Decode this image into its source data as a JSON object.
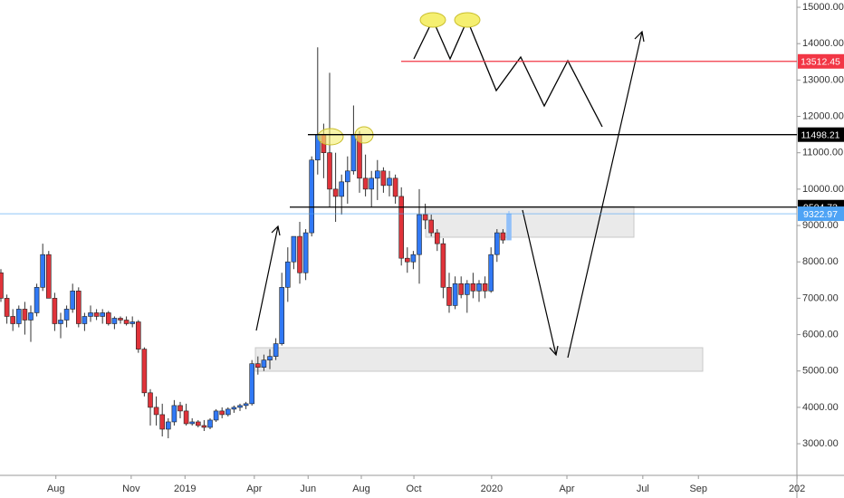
{
  "chart_data": {
    "type": "candlestick",
    "x": [
      0,
      1,
      2,
      3,
      4,
      5,
      6,
      7,
      8,
      9,
      10,
      11,
      12,
      13,
      14,
      15,
      16,
      17,
      18,
      19,
      20,
      21,
      22,
      23,
      24,
      25,
      26,
      27,
      28,
      29,
      30,
      31,
      32,
      33,
      34,
      35,
      36,
      37,
      38,
      39,
      40,
      41,
      42,
      43,
      44,
      45,
      46,
      47,
      48,
      49,
      50,
      51,
      52,
      53,
      54,
      55,
      56,
      57,
      58,
      59,
      60,
      61,
      62,
      63,
      64,
      65,
      66,
      67,
      68,
      69,
      70,
      71,
      72,
      73,
      74,
      75,
      76,
      77,
      78,
      79,
      80,
      81,
      82,
      83,
      84,
      85
    ],
    "open": [
      7700,
      7000,
      6500,
      6300,
      6700,
      6400,
      6600,
      7300,
      8200,
      7000,
      6300,
      6400,
      6700,
      7200,
      6300,
      6500,
      6600,
      6500,
      6600,
      6300,
      6450,
      6400,
      6300,
      6350,
      5600,
      4400,
      4000,
      3800,
      3400,
      3600,
      4050,
      3900,
      3550,
      3600,
      3500,
      3450,
      3650,
      3900,
      3800,
      3950,
      4000,
      4050,
      4100,
      5200,
      5100,
      5300,
      5400,
      5750,
      7300,
      8000,
      8700,
      7700,
      8800,
      10800,
      11500,
      11000,
      10000,
      9800,
      10200,
      10500,
      11500,
      10300,
      10000,
      10300,
      10500,
      10100,
      10300,
      9800,
      8100,
      8000,
      8200,
      9300,
      9150,
      8800,
      8500,
      7300,
      6800,
      7400,
      7100,
      7400,
      7200,
      7400,
      7200,
      8200,
      8800,
      8600
    ],
    "high": [
      7800,
      7100,
      6700,
      6800,
      6900,
      6800,
      7400,
      8500,
      8300,
      7150,
      6600,
      6800,
      7400,
      7300,
      6600,
      6800,
      6700,
      6700,
      6650,
      6500,
      6500,
      6500,
      6500,
      6400,
      5650,
      4500,
      4300,
      4100,
      3700,
      4200,
      4150,
      4100,
      3700,
      3650,
      3650,
      3700,
      3950,
      4000,
      4000,
      4050,
      4100,
      4150,
      5300,
      5400,
      5450,
      5600,
      5900,
      7700,
      8400,
      8700,
      9100,
      8900,
      10900,
      13900,
      11800,
      13200,
      11000,
      10400,
      10900,
      12300,
      11600,
      10950,
      10500,
      10800,
      10600,
      10500,
      10400,
      10050,
      8400,
      8300,
      10000,
      9600,
      9300,
      8900,
      8650,
      7700,
      7600,
      7600,
      7500,
      7700,
      7500,
      7600,
      8400,
      8900,
      8900,
      9400
    ],
    "low": [
      6900,
      6300,
      6100,
      6200,
      6000,
      5800,
      6500,
      7200,
      7000,
      6100,
      5900,
      6200,
      6600,
      6200,
      6100,
      6350,
      6400,
      6300,
      6250,
      6150,
      6300,
      6250,
      6200,
      5500,
      4300,
      3500,
      3500,
      3200,
      3150,
      3500,
      3700,
      3500,
      3500,
      3450,
      3350,
      3400,
      3600,
      3700,
      3750,
      3850,
      3900,
      3950,
      4050,
      4900,
      5000,
      5050,
      5300,
      5700,
      6900,
      7800,
      7400,
      7500,
      8700,
      10400,
      10300,
      9500,
      9100,
      9300,
      9600,
      10400,
      9900,
      9800,
      9500,
      9700,
      9900,
      9800,
      9600,
      7900,
      7700,
      7800,
      7400,
      8900,
      8700,
      8300,
      7000,
      6600,
      6700,
      7000,
      6600,
      7000,
      6900,
      7000,
      7150,
      8000,
      8500,
      8600
    ],
    "close": [
      7000,
      6500,
      6300,
      6700,
      6400,
      6600,
      7300,
      8200,
      7000,
      6300,
      6400,
      6700,
      7200,
      6300,
      6500,
      6600,
      6500,
      6600,
      6300,
      6450,
      6400,
      6300,
      6350,
      5600,
      4400,
      4000,
      3800,
      3400,
      3600,
      4050,
      3900,
      3550,
      3600,
      3500,
      3450,
      3650,
      3900,
      3800,
      3950,
      4000,
      4050,
      4100,
      5200,
      5100,
      5300,
      5400,
      5750,
      7300,
      8000,
      8700,
      7700,
      8800,
      10800,
      11500,
      11000,
      10000,
      9800,
      10200,
      10500,
      11500,
      10300,
      10000,
      10300,
      10500,
      10100,
      10300,
      9800,
      8100,
      8000,
      8200,
      9300,
      9150,
      8800,
      8500,
      7300,
      6800,
      7400,
      7100,
      7400,
      7200,
      7400,
      7200,
      8200,
      8800,
      8600,
      9322.97
    ],
    "up_color": "#3179f5",
    "down_color": "#e0333a",
    "last_color": "#90bff9",
    "xlim": [
      -0.15,
      133.18
    ],
    "ylim": [
      2130,
      15200
    ],
    "xticks": [
      {
        "value": 9.2,
        "label": "Aug"
      },
      {
        "value": 21.8,
        "label": "Nov"
      },
      {
        "value": 30.8,
        "label": "2019"
      },
      {
        "value": 42.4,
        "label": "Apr"
      },
      {
        "value": 51.4,
        "label": "Jun"
      },
      {
        "value": 60.3,
        "label": "Aug"
      },
      {
        "value": 69.1,
        "label": "Oct"
      },
      {
        "value": 82.1,
        "label": "2020"
      },
      {
        "value": 94.7,
        "label": "Apr"
      },
      {
        "value": 107.4,
        "label": "Jul"
      },
      {
        "value": 116.7,
        "label": "Sep"
      },
      {
        "value": 133.2,
        "label": "202"
      }
    ],
    "yticks": [
      {
        "value": 3000,
        "label": "3000.00"
      },
      {
        "value": 4000,
        "label": "4000.00"
      },
      {
        "value": 5000,
        "label": "5000.00"
      },
      {
        "value": 6000,
        "label": "6000.00"
      },
      {
        "value": 7000,
        "label": "7000.00"
      },
      {
        "value": 8000,
        "label": "8000.00"
      },
      {
        "value": 9000,
        "label": "9000.00"
      },
      {
        "value": 10000,
        "label": "10000.00"
      },
      {
        "value": 11000,
        "label": "11000.00"
      },
      {
        "value": 12000,
        "label": "12000.00"
      },
      {
        "value": 13000,
        "label": "13000.00"
      },
      {
        "value": 14000,
        "label": "14000.00"
      },
      {
        "value": 15000,
        "label": "15000.00"
      }
    ],
    "price_lines": [
      {
        "value": 13512.45,
        "color": "#f23645"
      },
      {
        "value": 11498.21,
        "color": "#000000"
      },
      {
        "value": 9504.73,
        "color": "#000000"
      },
      {
        "value": 9322.97,
        "color": "#4ea3f5"
      }
    ]
  }
}
